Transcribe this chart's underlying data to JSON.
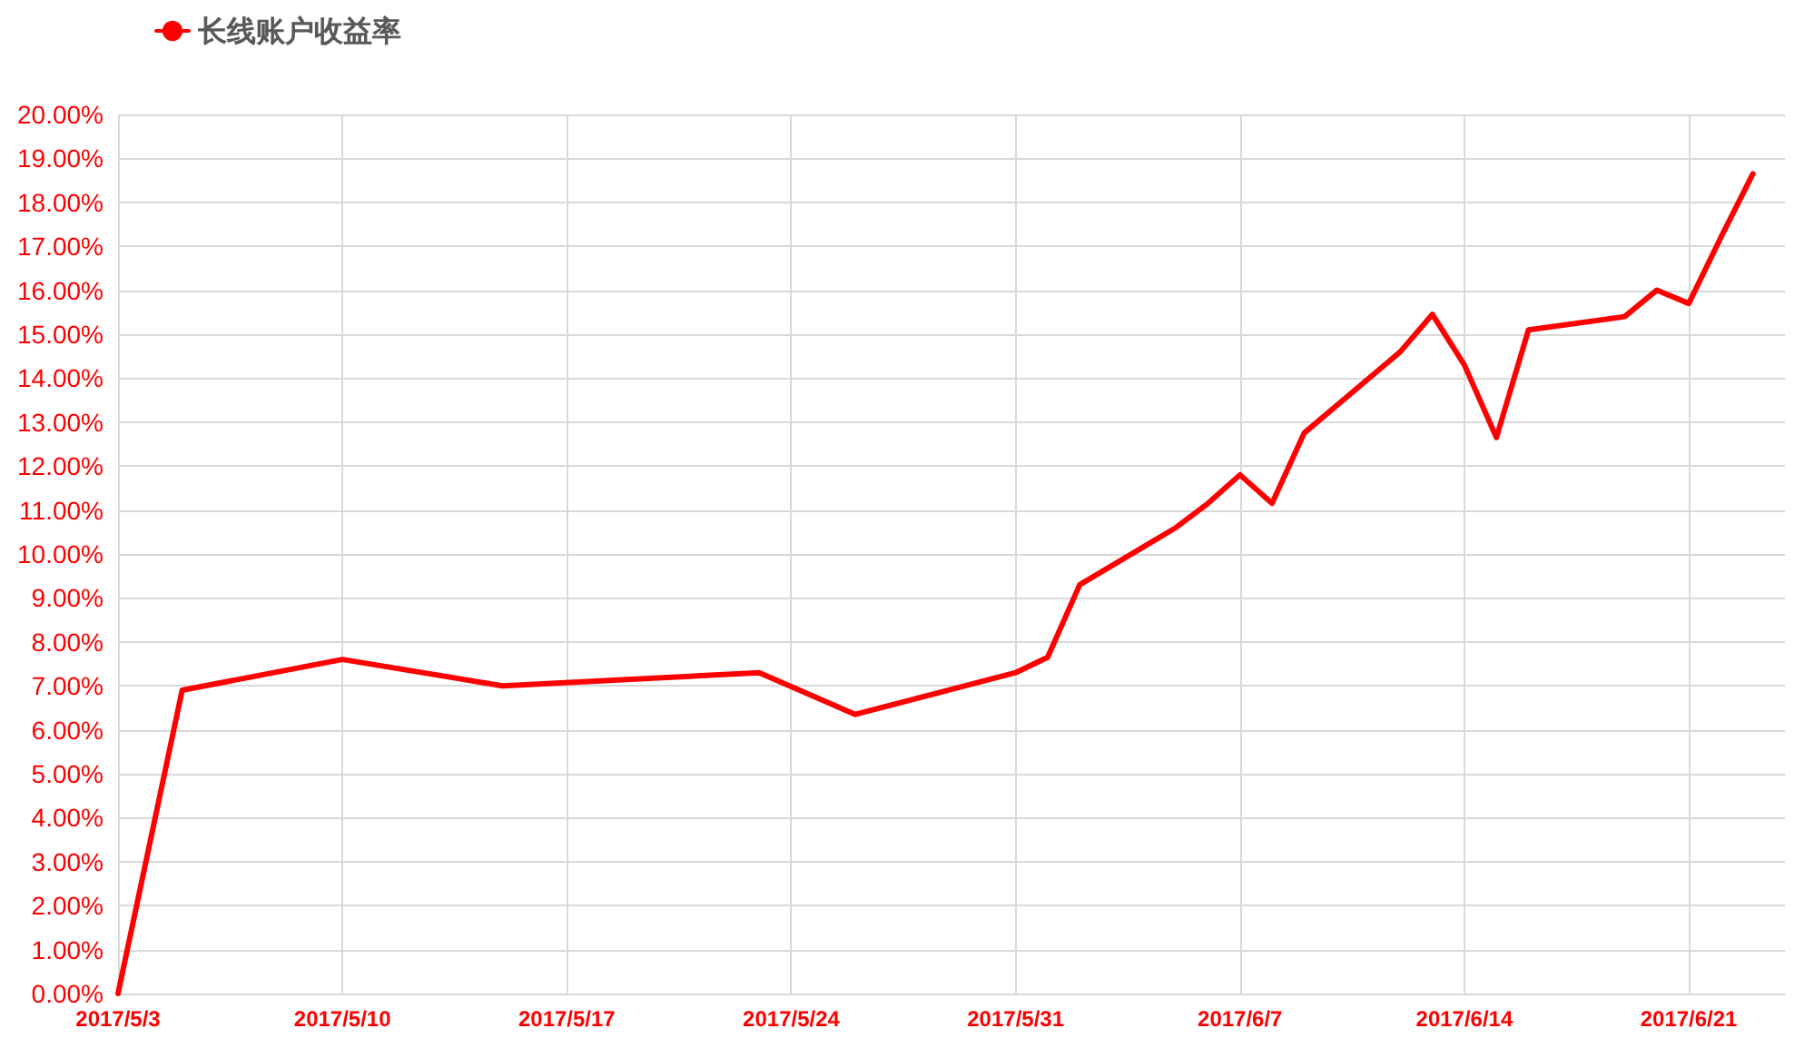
{
  "chart_data": {
    "type": "line",
    "x": [
      "2017-05-03",
      "2017-05-05",
      "2017-05-10",
      "2017-05-15",
      "2017-05-23",
      "2017-05-26",
      "2017-05-31",
      "2017-06-01",
      "2017-06-02",
      "2017-06-05",
      "2017-06-06",
      "2017-06-07",
      "2017-06-08",
      "2017-06-09",
      "2017-06-12",
      "2017-06-13",
      "2017-06-14",
      "2017-06-15",
      "2017-06-16",
      "2017-06-19",
      "2017-06-20",
      "2017-06-21",
      "2017-06-22",
      "2017-06-23"
    ],
    "series": [
      {
        "name": "长线账户收益率",
        "color": "#ff0000",
        "values": [
          0,
          6.9,
          7.6,
          7.0,
          7.3,
          6.35,
          7.3,
          7.65,
          9.3,
          10.6,
          11.15,
          11.8,
          11.15,
          12.75,
          14.6,
          15.45,
          14.3,
          12.65,
          15.1,
          15.4,
          16.0,
          15.7,
          17.2,
          18.65
        ]
      }
    ],
    "xlim": [
      "2017-05-03",
      "2017-06-24"
    ],
    "xticks": [
      {
        "value": "2017-05-03",
        "label": "2017/5/3"
      },
      {
        "value": "2017-05-10",
        "label": "2017/5/10"
      },
      {
        "value": "2017-05-17",
        "label": "2017/5/17"
      },
      {
        "value": "2017-05-24",
        "label": "2017/5/24"
      },
      {
        "value": "2017-05-31",
        "label": "2017/5/31"
      },
      {
        "value": "2017-06-07",
        "label": "2017/6/7"
      },
      {
        "value": "2017-06-14",
        "label": "2017/6/14"
      },
      {
        "value": "2017-06-21",
        "label": "2017/6/21"
      }
    ],
    "ylim": [
      0,
      20
    ],
    "yticks": [
      {
        "value": 0,
        "label": "0.00%"
      },
      {
        "value": 1,
        "label": "1.00%"
      },
      {
        "value": 2,
        "label": "2.00%"
      },
      {
        "value": 3,
        "label": "3.00%"
      },
      {
        "value": 4,
        "label": "4.00%"
      },
      {
        "value": 5,
        "label": "5.00%"
      },
      {
        "value": 6,
        "label": "6.00%"
      },
      {
        "value": 7,
        "label": "7.00%"
      },
      {
        "value": 8,
        "label": "8.00%"
      },
      {
        "value": 9,
        "label": "9.00%"
      },
      {
        "value": 10,
        "label": "10.00%"
      },
      {
        "value": 11,
        "label": "11.00%"
      },
      {
        "value": 12,
        "label": "12.00%"
      },
      {
        "value": 13,
        "label": "13.00%"
      },
      {
        "value": 14,
        "label": "14.00%"
      },
      {
        "value": 15,
        "label": "15.00%"
      },
      {
        "value": 16,
        "label": "16.00%"
      },
      {
        "value": 17,
        "label": "17.00%"
      },
      {
        "value": 18,
        "label": "18.00%"
      },
      {
        "value": 19,
        "label": "19.00%"
      },
      {
        "value": 20,
        "label": "20.00%"
      }
    ],
    "grid": true,
    "legend": "top left",
    "marker": "none",
    "line_style": "solid"
  }
}
